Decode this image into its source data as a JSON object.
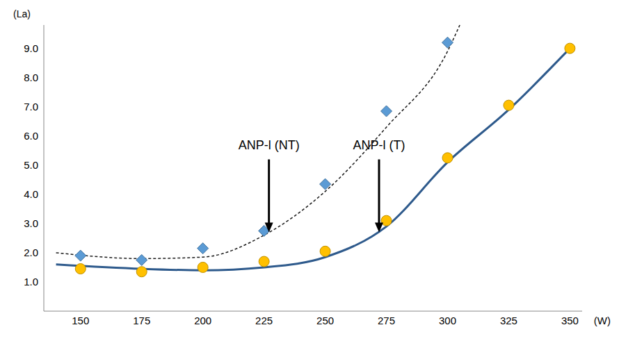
{
  "chart_data": {
    "type": "scatter",
    "x_label": "(W)",
    "y_label": "(La)",
    "xlim": [
      135,
      355
    ],
    "ylim": [
      0,
      9.8
    ],
    "xticks": [
      150,
      175,
      200,
      225,
      250,
      275,
      300,
      325,
      350
    ],
    "yticks": [
      {
        "value": 1,
        "label": "1.0"
      },
      {
        "value": 2,
        "label": "2.0"
      },
      {
        "value": 3,
        "label": "3.0"
      },
      {
        "value": 4,
        "label": "4.0"
      },
      {
        "value": 5,
        "label": "5.0"
      },
      {
        "value": 6,
        "label": "6.0"
      },
      {
        "value": 7,
        "label": "7.0"
      },
      {
        "value": 8,
        "label": "8.0"
      },
      {
        "value": 9,
        "label": "9.0"
      }
    ],
    "grid": false,
    "series": [
      {
        "type": "scatter",
        "marker": "diamond",
        "color": "#5b9bd5",
        "x": [
          150,
          175,
          200,
          225,
          250,
          275,
          300
        ],
        "values": [
          1.9,
          1.75,
          2.15,
          2.75,
          4.35,
          6.85,
          9.2
        ]
      },
      {
        "type": "line",
        "line_style": "dashed",
        "color": "#1a1a1a",
        "x": [
          140,
          175,
          200,
          225,
          250,
          275,
          300,
          305
        ],
        "values": [
          2.0,
          1.8,
          1.85,
          2.6,
          4.1,
          6.3,
          8.9,
          9.8
        ]
      },
      {
        "type": "scatter",
        "marker": "circle",
        "color": "#ffc000",
        "x": [
          150,
          175,
          200,
          225,
          250,
          275,
          300,
          325,
          350
        ],
        "values": [
          1.45,
          1.35,
          1.5,
          1.7,
          2.05,
          3.1,
          5.25,
          7.05,
          9.0
        ]
      },
      {
        "type": "line",
        "line_style": "solid",
        "color": "#2e5a8c",
        "x": [
          140,
          175,
          200,
          225,
          250,
          275,
          300,
          325,
          350
        ],
        "values": [
          1.6,
          1.45,
          1.4,
          1.5,
          1.85,
          2.9,
          5.1,
          6.9,
          9.0
        ]
      }
    ],
    "annotations": [
      {
        "text": "ANP-l (NT)",
        "x": 227,
        "y": 2.7
      },
      {
        "text": "ANP-l (T)",
        "x": 272,
        "y": 2.7
      }
    ]
  }
}
